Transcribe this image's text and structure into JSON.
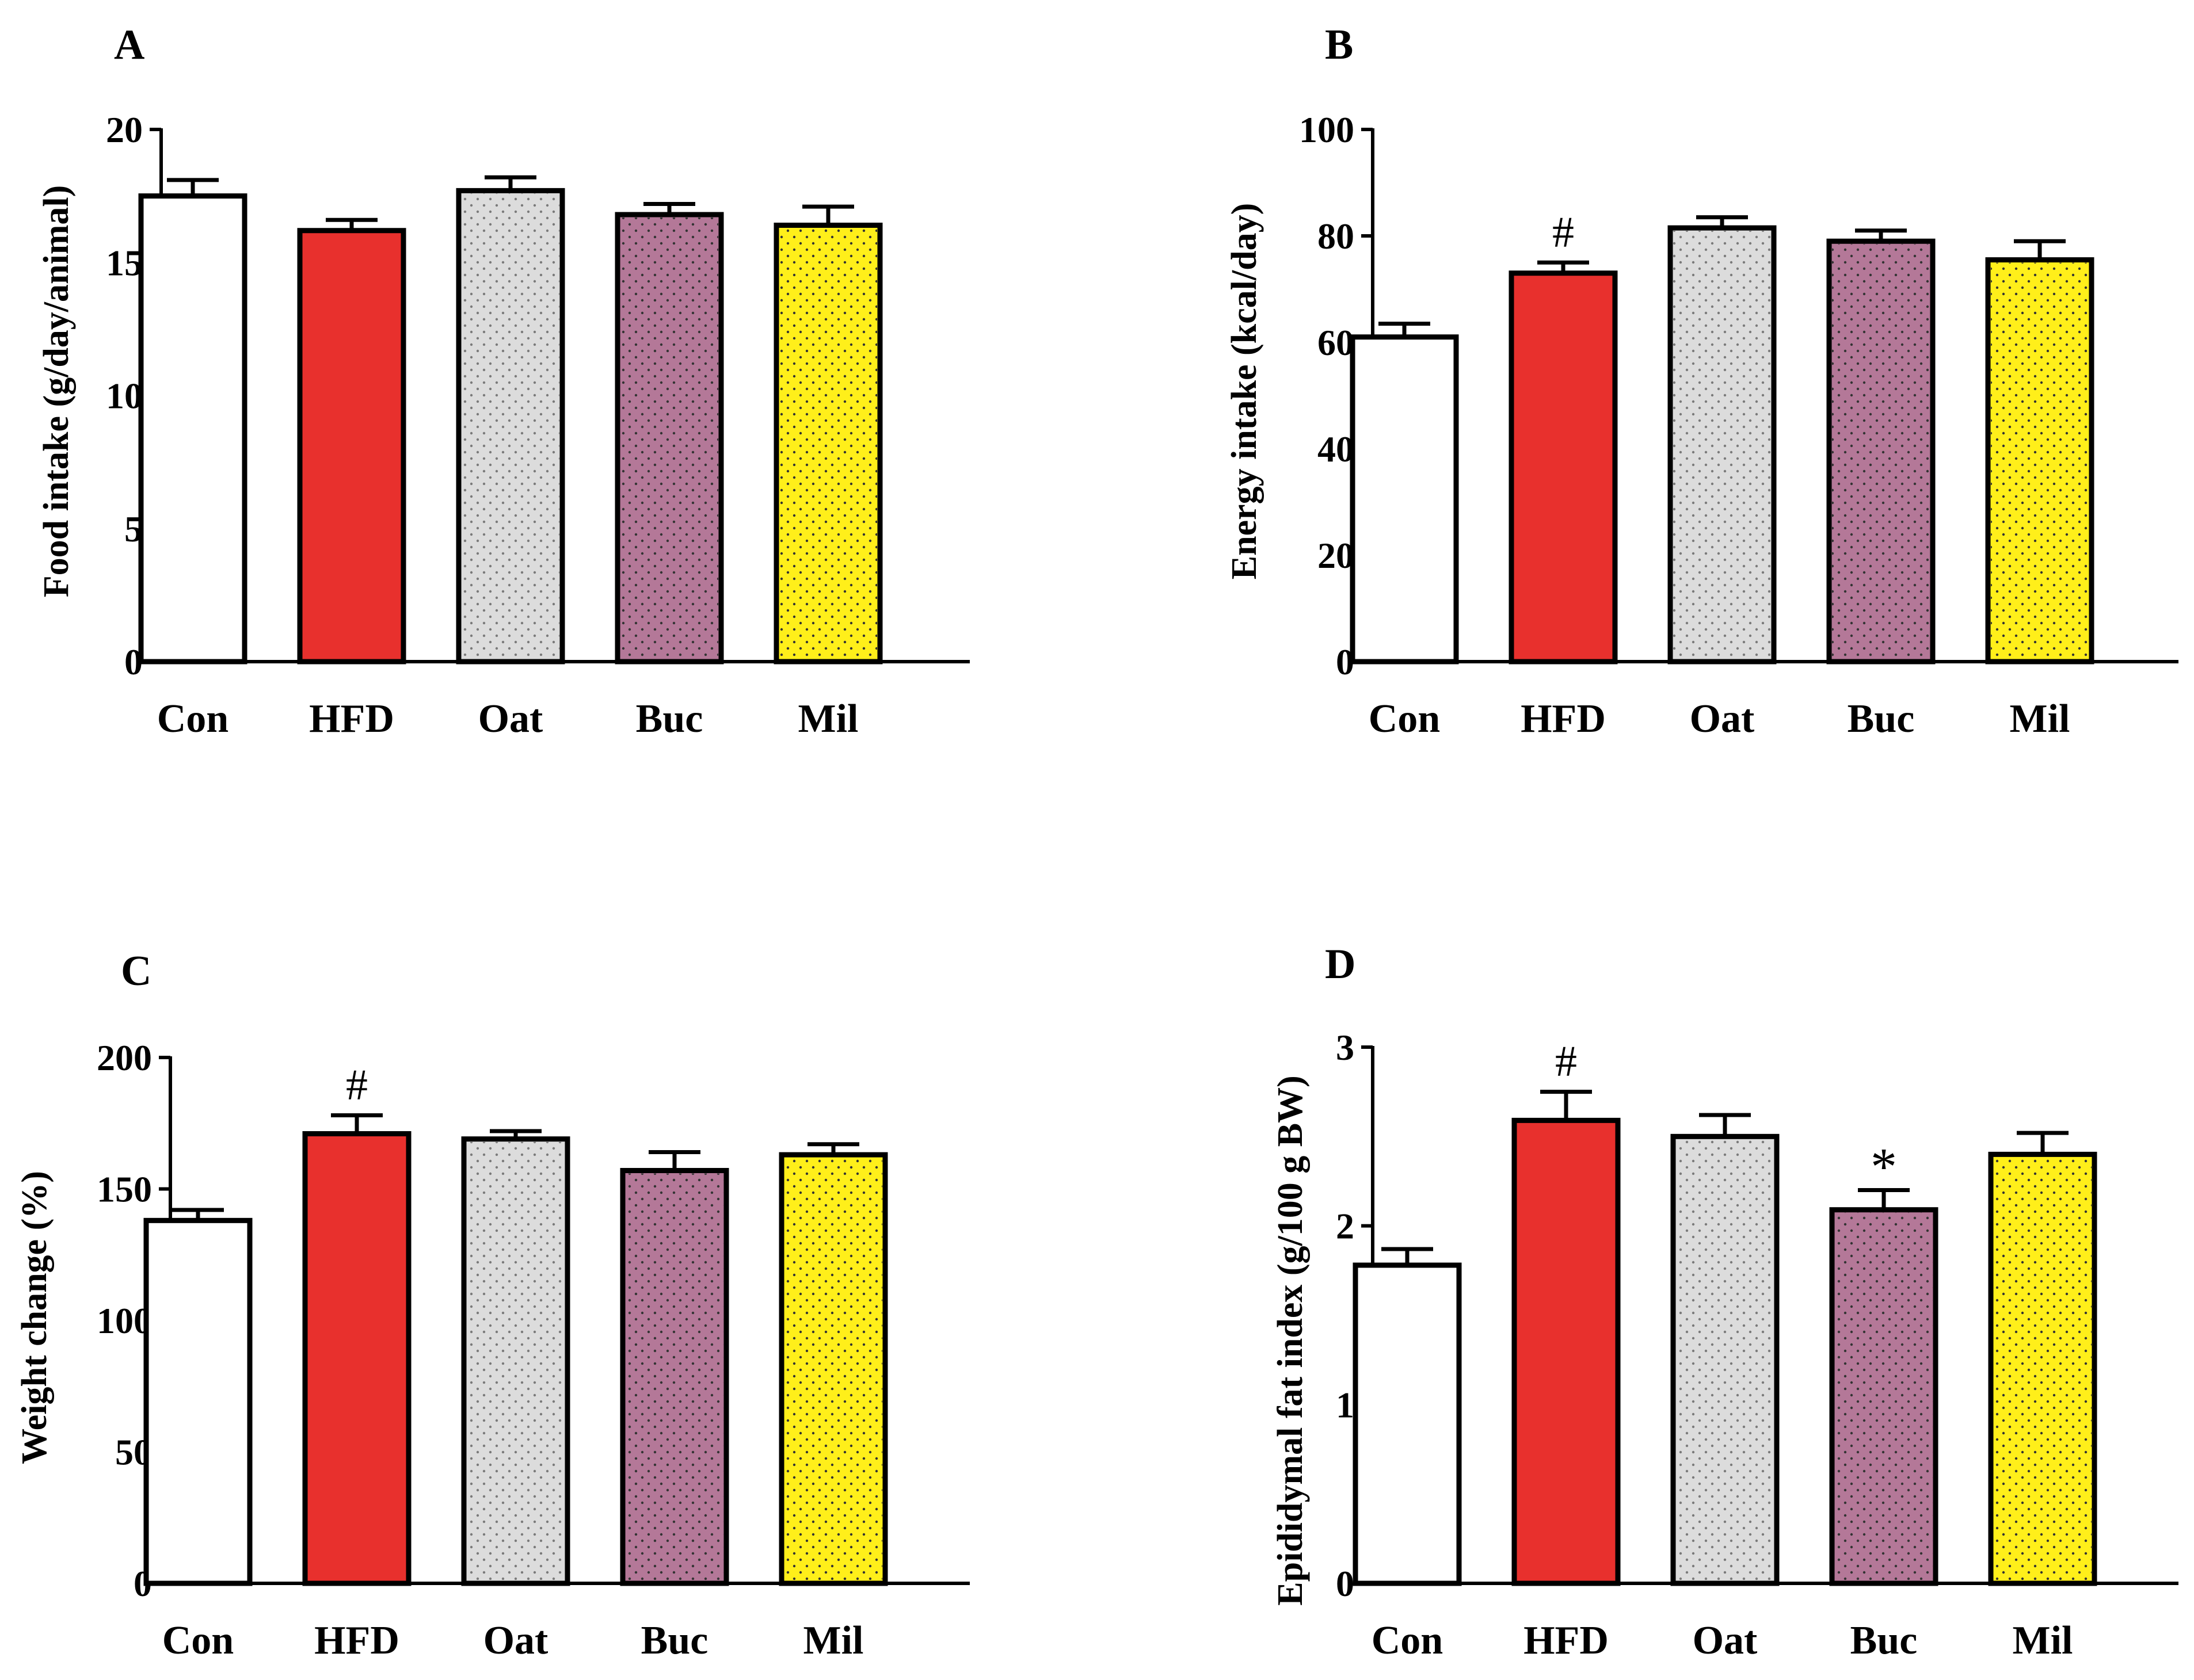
{
  "colors": {
    "Con": "#ffffff",
    "HFD": "#e8302d",
    "Oat": "#dcdcdc",
    "Buc": "#b47898",
    "Mil": "#ffef1a",
    "ink": "#000000"
  },
  "chart_data": [
    {
      "panel": "A",
      "type": "bar",
      "categories": [
        "Con",
        "HFD",
        "Oat",
        "Buc",
        "Mil"
      ],
      "values": [
        17.5,
        16.2,
        17.7,
        16.8,
        16.4
      ],
      "errors": [
        0.6,
        0.4,
        0.5,
        0.4,
        0.7
      ],
      "annotations": [
        "",
        "",
        "",
        "",
        ""
      ],
      "ylabel": "Food intake (g/day/animal)",
      "xlabel": "",
      "ylim": [
        0,
        20
      ],
      "yticks": [
        0,
        5,
        10,
        15,
        20
      ]
    },
    {
      "panel": "B",
      "type": "bar",
      "categories": [
        "Con",
        "HFD",
        "Oat",
        "Buc",
        "Mil"
      ],
      "values": [
        61,
        73,
        81.5,
        79,
        75.5
      ],
      "errors": [
        2.5,
        2.0,
        2.0,
        2.0,
        3.5
      ],
      "annotations": [
        "",
        "#",
        "",
        "",
        ""
      ],
      "ylabel": "Energy intake (kcal/day)",
      "xlabel": "",
      "ylim": [
        0,
        100
      ],
      "yticks": [
        0,
        20,
        40,
        60,
        80,
        100
      ]
    },
    {
      "panel": "C",
      "type": "bar",
      "categories": [
        "Con",
        "HFD",
        "Oat",
        "Buc",
        "Mil"
      ],
      "values": [
        138,
        171,
        169,
        157,
        163
      ],
      "errors": [
        4,
        7,
        3,
        7,
        4
      ],
      "annotations": [
        "",
        "#",
        "",
        "",
        ""
      ],
      "ylabel": "Weight change (%)",
      "xlabel": "",
      "ylim": [
        0,
        200
      ],
      "yticks": [
        0,
        50,
        100,
        150,
        200
      ]
    },
    {
      "panel": "D",
      "type": "bar",
      "categories": [
        "Con",
        "HFD",
        "Oat",
        "Buc",
        "Mil"
      ],
      "values": [
        1.78,
        2.59,
        2.5,
        2.09,
        2.4
      ],
      "errors": [
        0.09,
        0.16,
        0.12,
        0.11,
        0.12
      ],
      "annotations": [
        "",
        "#",
        "",
        "*",
        ""
      ],
      "ylabel": "Epididymal fat index  (g/100 g BW)",
      "xlabel": "",
      "ylim": [
        0,
        3
      ],
      "yticks": [
        0,
        1,
        2,
        3
      ]
    }
  ]
}
